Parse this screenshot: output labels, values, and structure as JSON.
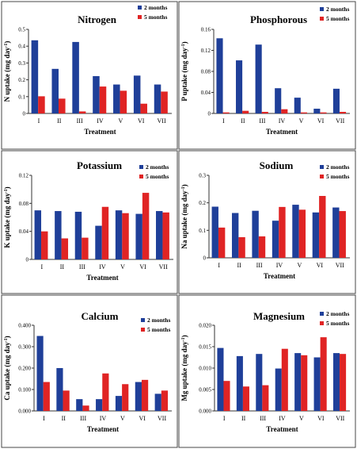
{
  "colors": {
    "series1": "#1f3f99",
    "series2": "#e02424",
    "axis": "#333333",
    "border": "#444444"
  },
  "chart_data": [
    {
      "type": "bar",
      "title": "Nitrogen",
      "ylabel_main": "N uptake (mg day",
      "ylabel_sup": "-1",
      "ylabel_tail": ")",
      "xlabel": "Treatment",
      "categories": [
        "I",
        "II",
        "III",
        "IV",
        "V",
        "VI",
        "VII"
      ],
      "ylim": [
        0,
        0.5
      ],
      "yticks": [
        "0",
        "0.1",
        "0.2",
        "0.3",
        "0.4",
        "0.5"
      ],
      "series": [
        {
          "name": "2 months",
          "values": [
            0.435,
            0.265,
            0.425,
            0.222,
            0.172,
            0.225,
            0.172
          ]
        },
        {
          "name": "5 months",
          "values": [
            0.102,
            0.088,
            0.012,
            0.16,
            0.135,
            0.058,
            0.13
          ]
        }
      ]
    },
    {
      "type": "bar",
      "title": "Phosphorous",
      "ylabel_main": "P uptake (mg day",
      "ylabel_sup": "-1",
      "ylabel_tail": ")",
      "xlabel": "Treatment",
      "categories": [
        "I",
        "II",
        "III",
        "IV",
        "V",
        "VI",
        "VII"
      ],
      "ylim": [
        0,
        0.16
      ],
      "yticks": [
        "0",
        "0.04",
        "0.08",
        "0.12",
        "0.16"
      ],
      "series": [
        {
          "name": "2 months",
          "values": [
            0.143,
            0.101,
            0.131,
            0.048,
            0.03,
            0.009,
            0.047
          ]
        },
        {
          "name": "5 months",
          "values": [
            0.002,
            0.005,
            0.003,
            0.008,
            0.002,
            0.002,
            0.003
          ]
        }
      ]
    },
    {
      "type": "bar",
      "title": "Potassium",
      "ylabel_main": "K uptake (mg day",
      "ylabel_sup": "-1",
      "ylabel_tail": ")",
      "xlabel": "Treatment",
      "categories": [
        "I",
        "II",
        "III",
        "IV",
        "V",
        "VI",
        "VII"
      ],
      "ylim": [
        0,
        0.12
      ],
      "yticks": [
        "0",
        "0.04",
        "0.08",
        "0.12"
      ],
      "series": [
        {
          "name": "2 months",
          "values": [
            0.07,
            0.069,
            0.068,
            0.048,
            0.07,
            0.065,
            0.069
          ]
        },
        {
          "name": "5 months",
          "values": [
            0.04,
            0.03,
            0.031,
            0.075,
            0.066,
            0.095,
            0.067
          ]
        }
      ]
    },
    {
      "type": "bar",
      "title": "Sodium",
      "ylabel_main": "Na uptake (mg day",
      "ylabel_sup": "-1",
      "ylabel_tail": ")",
      "xlabel": "Treatment",
      "categories": [
        "I",
        "II",
        "III",
        "IV",
        "V",
        "VI",
        "VII"
      ],
      "ylim": [
        0,
        0.3
      ],
      "yticks": [
        "0",
        "0.1",
        "0.2",
        "0.3"
      ],
      "series": [
        {
          "name": "2 months",
          "values": [
            0.186,
            0.163,
            0.171,
            0.135,
            0.193,
            0.165,
            0.183
          ]
        },
        {
          "name": "5 months",
          "values": [
            0.11,
            0.075,
            0.078,
            0.185,
            0.175,
            0.225,
            0.17
          ]
        }
      ]
    },
    {
      "type": "bar",
      "title": "Calcium",
      "ylabel_main": "Ca uptake (mg day",
      "ylabel_sup": "-1",
      "ylabel_tail": ")",
      "xlabel": "Treatment",
      "categories": [
        "I",
        "II",
        "III",
        "IV",
        "V",
        "VI",
        "VII"
      ],
      "ylim": [
        0,
        0.4
      ],
      "yticks": [
        "0.000",
        "0.100",
        "0.200",
        "0.300",
        "0.400"
      ],
      "series": [
        {
          "name": "2 months",
          "values": [
            0.35,
            0.2,
            0.055,
            0.055,
            0.07,
            0.135,
            0.08
          ]
        },
        {
          "name": "5 months",
          "values": [
            0.135,
            0.095,
            0.025,
            0.175,
            0.125,
            0.145,
            0.095
          ]
        }
      ]
    },
    {
      "type": "bar",
      "title": "Magnesium",
      "ylabel_main": "Mg uptake (mg day",
      "ylabel_sup": "-1",
      "ylabel_tail": ")",
      "xlabel": "Treatment",
      "categories": [
        "I",
        "II",
        "III",
        "IV",
        "V",
        "VI",
        "VII"
      ],
      "ylim": [
        0,
        0.02
      ],
      "yticks": [
        "0.000",
        "0.005",
        "0.010",
        "0.015",
        "0.020"
      ],
      "series": [
        {
          "name": "2 months",
          "values": [
            0.0147,
            0.0128,
            0.0133,
            0.0099,
            0.0135,
            0.0125,
            0.0135
          ]
        },
        {
          "name": "5 months",
          "values": [
            0.007,
            0.0057,
            0.006,
            0.0145,
            0.013,
            0.0172,
            0.0133
          ]
        }
      ]
    }
  ]
}
